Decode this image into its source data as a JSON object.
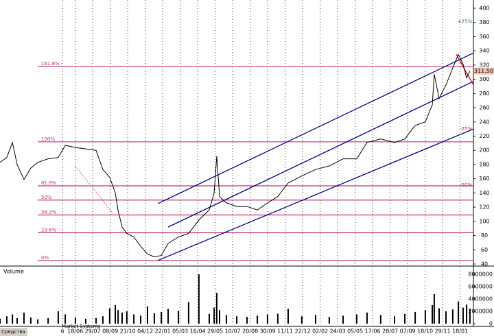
{
  "chart_data": {
    "type": "line",
    "x": [
      0,
      0.39,
      0.71,
      0.98,
      1.37,
      1.76,
      2.16,
      2.75,
      3.33,
      3.73,
      4.31,
      4.9,
      5.49,
      5.88,
      6.27,
      6.59,
      6.75,
      6.98,
      7.25,
      7.65,
      8.04,
      8.43,
      8.82,
      9.22,
      9.61,
      10.2,
      10.78,
      11.37,
      11.96,
      12.24,
      12.39,
      12.55,
      12.94,
      13.53,
      14.12,
      14.71,
      15.29,
      15.88,
      16.47,
      17.25,
      18.04,
      18.82,
      19.61,
      20.39,
      20.98,
      21.76,
      22.55,
      23.14,
      23.73,
      24.31,
      24.71,
      24.82,
      25.1,
      25.49,
      25.88,
      26.2,
      26.47,
      26.67,
      26.86
    ],
    "series": [
      {
        "color": "#000000",
        "values": [
          183,
          190,
          211,
          180,
          159,
          175,
          183,
          188,
          190,
          207,
          204,
          202,
          200,
          173,
          162,
          140,
          115,
          92,
          83,
          78,
          65,
          54,
          50,
          52,
          69,
          78,
          83,
          102,
          116,
          140,
          192,
          135,
          126,
          121,
          121,
          116,
          126,
          135,
          154,
          164,
          173,
          178,
          188,
          188,
          211,
          216,
          211,
          216,
          235,
          240,
          264,
          307,
          273,
          292,
          316,
          335,
          321,
          302,
          311.5
        ]
      }
    ],
    "xlim": [
      0,
      27.06
    ],
    "xticks": [
      {
        "value": 3.57,
        "label": "6"
      },
      {
        "value": 4.3,
        "label": "18/06"
      },
      {
        "value": 5.3,
        "label": "29/07"
      },
      {
        "value": 6.3,
        "label": "08/09"
      },
      {
        "value": 7.3,
        "label": "21/10"
      },
      {
        "value": 8.3,
        "label": "04/12"
      },
      {
        "value": 9.3,
        "label": "22/01"
      },
      {
        "value": 10.3,
        "label": "05/03"
      },
      {
        "value": 11.3,
        "label": "16/04"
      },
      {
        "value": 12.3,
        "label": "29/05"
      },
      {
        "value": 13.3,
        "label": "10/07"
      },
      {
        "value": 14.3,
        "label": "20/08"
      },
      {
        "value": 15.3,
        "label": "30/09"
      },
      {
        "value": 16.3,
        "label": "11/11"
      },
      {
        "value": 17.3,
        "label": "22/12"
      },
      {
        "value": 18.3,
        "label": "02/02"
      },
      {
        "value": 19.3,
        "label": "24/03"
      },
      {
        "value": 20.3,
        "label": "05/05"
      },
      {
        "value": 21.3,
        "label": "17/06"
      },
      {
        "value": 22.3,
        "label": "28/07"
      },
      {
        "value": 23.3,
        "label": "07/09"
      },
      {
        "value": 24.3,
        "label": "18/10"
      },
      {
        "value": 25.3,
        "label": "29/11"
      },
      {
        "value": 26.3,
        "label": "18/01"
      }
    ],
    "ylim": [
      40,
      400
    ],
    "yticks": [
      40,
      60,
      80,
      100,
      120,
      140,
      160,
      180,
      200,
      220,
      240,
      260,
      280,
      300,
      320,
      340,
      360,
      380,
      400
    ],
    "price_label": {
      "value": 311.5,
      "label": "311.50"
    },
    "fib_levels": [
      {
        "label": "161.8%",
        "level": 318
      },
      {
        "label": "100%",
        "level": 212
      },
      {
        "label": "61.8%",
        "level": 150
      },
      {
        "label": "50%",
        "level": 130
      },
      {
        "label": "38.2%",
        "level": 109
      },
      {
        "label": "23.6%",
        "level": 84
      },
      {
        "label": "0%",
        "level": 45
      }
    ],
    "fib_color": "#c0307a",
    "percent_markers": [
      {
        "label": "+25%",
        "level": 381,
        "color": "#208020"
      },
      {
        "label": "-25%",
        "level": 230,
        "color": "#d02020"
      },
      {
        "label": "-50%",
        "level": 151,
        "color": "#d02020"
      }
    ],
    "trendlines": [
      {
        "x": [
          9.02,
          27.06
        ],
        "y": [
          125,
          337
        ],
        "color": "#00008b",
        "dash": false
      },
      {
        "x": [
          9.61,
          27.06
        ],
        "y": [
          92,
          297
        ],
        "color": "#00008b",
        "dash": false
      },
      {
        "x": [
          9.02,
          27.06
        ],
        "y": [
          45,
          230
        ],
        "color": "#00008b",
        "dash": false
      },
      {
        "x": [
          26.08,
          27.06
        ],
        "y": [
          335,
          292
        ],
        "color": "#e00000",
        "dash": false
      },
      {
        "x": [
          4.31,
          6.47
        ],
        "y": [
          178,
          111
        ],
        "color": "#e08080",
        "dash": true
      }
    ],
    "volume": {
      "label": "Volume",
      "color": "#000000",
      "values": [
        800000,
        1200000,
        1500000,
        900000,
        1800000,
        1000000,
        700000,
        900000,
        2000000,
        1500000,
        1000000,
        800000,
        900000,
        1200000,
        2500000,
        3000000,
        2200000,
        1800000,
        2000000,
        1500000,
        1300000,
        2800000,
        1700000,
        1900000,
        2400000,
        2100000,
        3500000,
        8000000,
        1600000,
        2600000,
        5000000,
        2200000,
        1400000,
        1200000,
        1100000,
        1300000,
        1500000,
        1600000,
        2400000,
        1200000,
        1400000,
        1100000,
        1300000,
        1500000,
        1800000,
        1400000,
        1200000,
        1600000,
        1900000,
        2200000,
        3000000,
        4800000,
        2500000,
        2000000,
        2300000,
        3600000,
        2600000,
        3100000,
        2400000
      ],
      "ylim": [
        0,
        8000000
      ],
      "yticks": [
        0,
        2000000,
        4000000,
        6000000,
        8000000
      ]
    },
    "footer": [
      "Средства",
      "Market Systems"
    ]
  }
}
